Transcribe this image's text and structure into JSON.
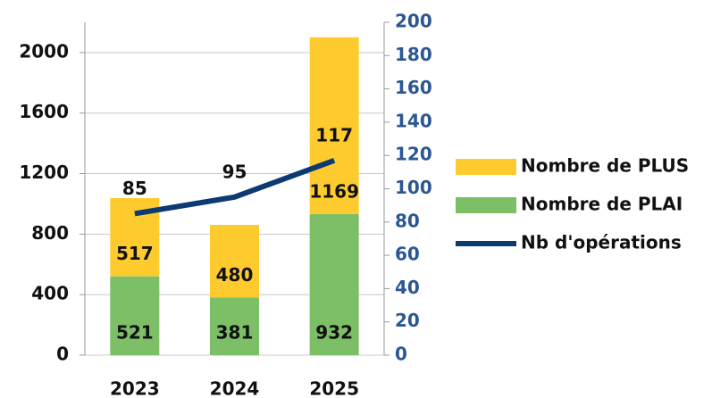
{
  "chart_data": {
    "type": "bar",
    "categories": [
      "2023",
      "2024",
      "2025"
    ],
    "series": [
      {
        "name": "Nombre de PLAI",
        "color": "#7dbf67",
        "values": [
          521,
          381,
          932
        ]
      },
      {
        "name": "Nombre de PLUS",
        "color": "#fecb2e",
        "values": [
          517,
          480,
          1169
        ]
      },
      {
        "name": "Nb d'opérations",
        "color": "#0d3a73",
        "values": [
          85,
          95,
          117
        ],
        "axis": "y2",
        "type": "line"
      }
    ],
    "ylim": [
      0,
      2200
    ],
    "yticks": [
      0,
      400,
      800,
      1200,
      1600,
      2000
    ],
    "y2lim": [
      0,
      200
    ],
    "y2ticks": [
      0,
      20,
      40,
      60,
      80,
      100,
      120,
      140,
      160,
      180,
      200
    ],
    "grid": true,
    "legend": "right"
  }
}
